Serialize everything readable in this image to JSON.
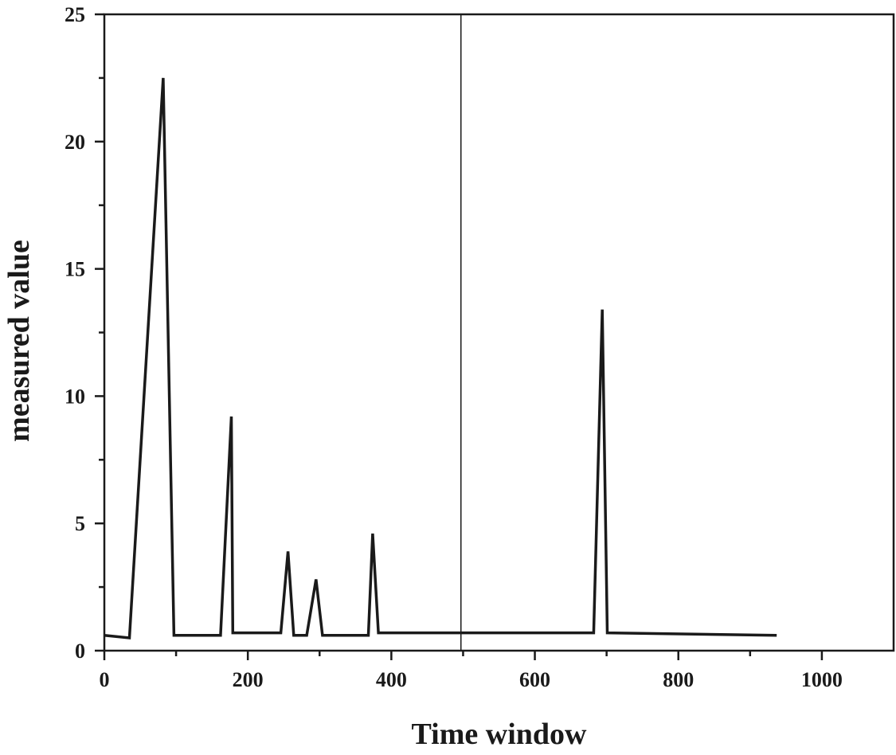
{
  "chart_data": {
    "type": "line",
    "title": "",
    "xlabel": "Time window",
    "ylabel": "measured value",
    "xlim": [
      0,
      1100
    ],
    "ylim": [
      0,
      25
    ],
    "x_ticks": [
      0,
      200,
      400,
      600,
      800,
      1000
    ],
    "y_ticks": [
      0,
      5,
      10,
      15,
      20,
      25
    ],
    "grid": false,
    "legend": "none",
    "reference_lines": [
      {
        "axis": "x",
        "value": 497
      }
    ],
    "series": [
      {
        "color": "#1a1a1a",
        "x": [
          0,
          35,
          82,
          97,
          162,
          177,
          179,
          246,
          256,
          264,
          282,
          295,
          304,
          368,
          374,
          382,
          682,
          694,
          701,
          937
        ],
        "y": [
          0.6,
          0.5,
          22.5,
          0.6,
          0.6,
          9.2,
          0.7,
          0.7,
          3.9,
          0.6,
          0.6,
          2.8,
          0.6,
          0.6,
          4.6,
          0.7,
          0.7,
          13.4,
          0.7,
          0.6
        ]
      }
    ]
  }
}
